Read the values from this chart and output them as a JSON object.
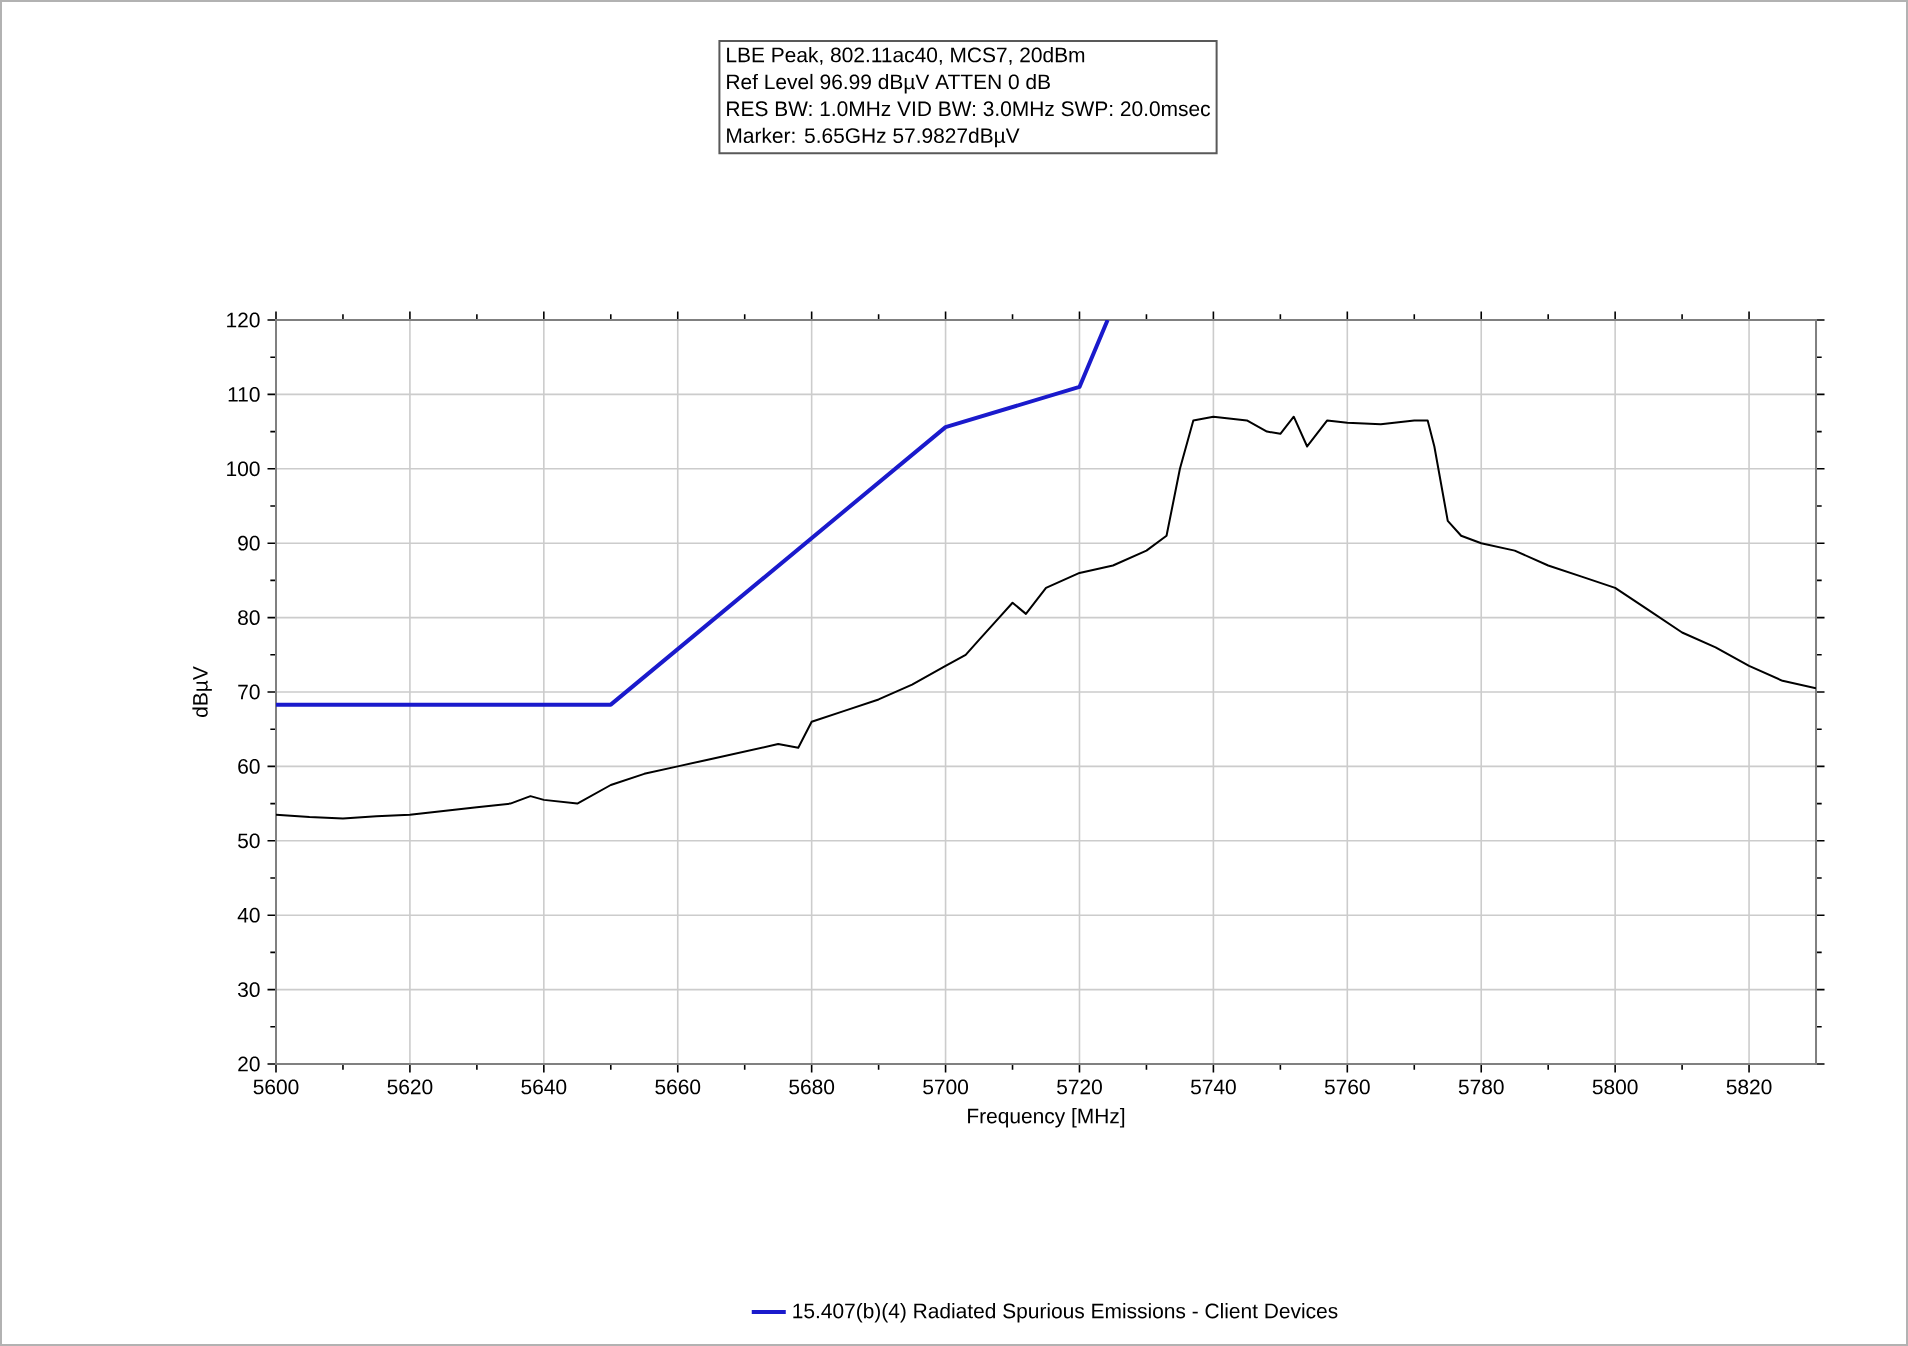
{
  "chart_data": {
    "type": "line",
    "xlabel": "Frequency [MHz]",
    "ylabel": "dBµV",
    "annotations": [
      "LBE Peak, 802.11ac40, MCS7, 20dBm",
      "Ref Level 96.99 dBµV    ATTEN 0 dB",
      "RES BW: 1.0MHz  VID BW: 3.0MHz  SWP: 20.0msec",
      "Marker: 5.65GHz  57.9827dBµV"
    ],
    "xlim": [
      5600,
      5830
    ],
    "ylim": [
      20,
      120
    ],
    "xticks": [
      5600,
      5620,
      5640,
      5660,
      5680,
      5700,
      5720,
      5740,
      5760,
      5780,
      5800,
      5820
    ],
    "yticks": [
      20,
      30,
      40,
      50,
      60,
      70,
      80,
      90,
      100,
      110,
      120
    ],
    "grid": true,
    "legend": "bottom",
    "series": [
      {
        "name": "15.407(b)(4) Radiated Spurious Emissions - Client Devices",
        "color": "#1a1acc",
        "x": [
          5600,
          5650,
          5700,
          5720,
          5724.2
        ],
        "values": [
          68.3,
          68.3,
          105.6,
          111,
          120
        ]
      },
      {
        "color": "#000000",
        "x": [
          5600,
          5605,
          5610,
          5615,
          5620,
          5625,
          5630,
          5635,
          5638,
          5640,
          5645,
          5648,
          5650,
          5655,
          5660,
          5665,
          5670,
          5675,
          5678,
          5680,
          5685,
          5690,
          5695,
          5700,
          5703,
          5705,
          5708,
          5710,
          5712,
          5715,
          5720,
          5725,
          5730,
          5733,
          5735,
          5737,
          5740,
          5745,
          5748,
          5750,
          5752,
          5754,
          5757,
          5760,
          5765,
          5770,
          5772,
          5773,
          5775,
          5777,
          5780,
          5785,
          5790,
          5795,
          5800,
          5805,
          5810,
          5815,
          5820,
          5825,
          5830
        ],
        "values": [
          53.5,
          53.2,
          53,
          53.3,
          53.5,
          54,
          54.5,
          55,
          56,
          55.5,
          55,
          56.5,
          57.5,
          59,
          60,
          61,
          62,
          63,
          62.5,
          66,
          67.5,
          69,
          71,
          73.5,
          75,
          77,
          80,
          82,
          80.5,
          84,
          86,
          87,
          89,
          91,
          100,
          106.5,
          107,
          106.5,
          105,
          104.7,
          107,
          103,
          106.5,
          106.2,
          106,
          106.5,
          106.5,
          103,
          93,
          91,
          90,
          89,
          87,
          85.5,
          84,
          81,
          78,
          76,
          73.5,
          71.5,
          70.5
        ]
      }
    ]
  }
}
